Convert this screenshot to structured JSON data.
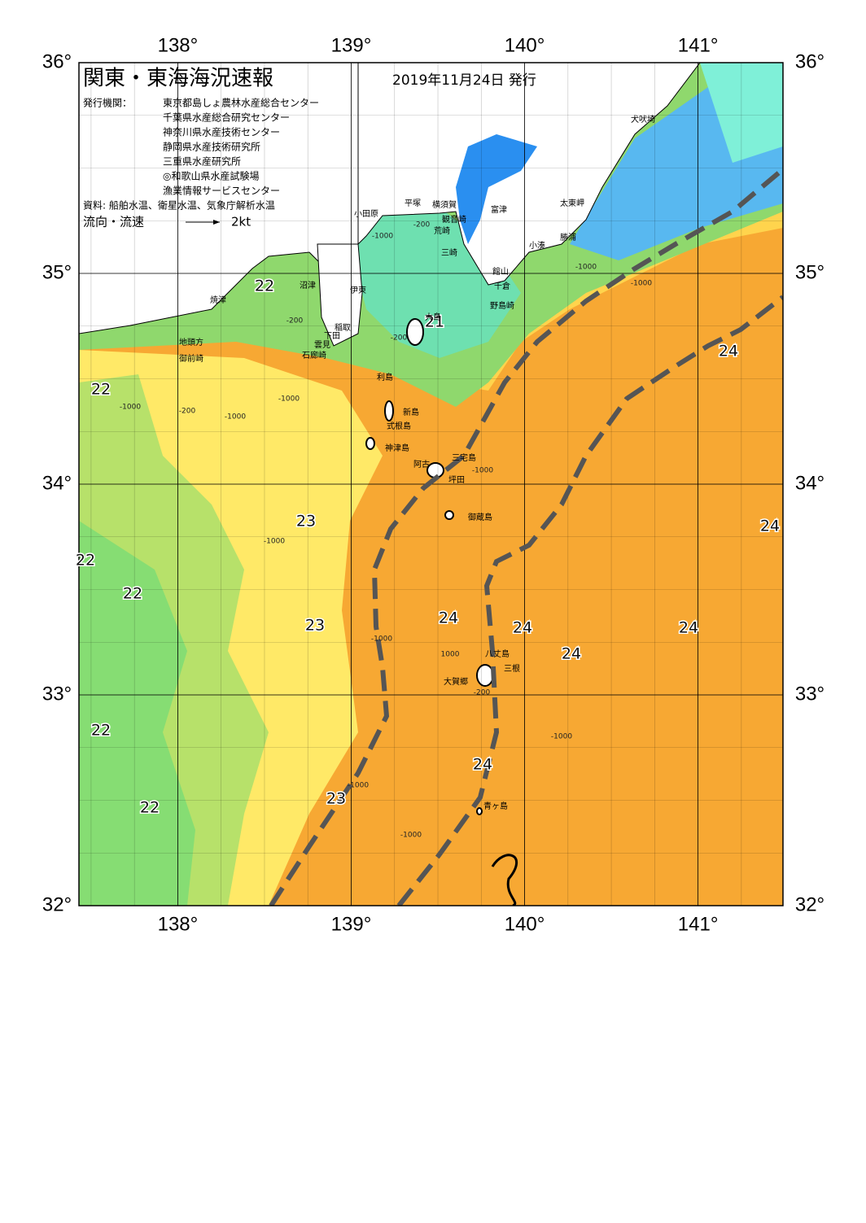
{
  "header": {
    "title": "関東・東海海況速報",
    "date": "2019年11月24日 発行"
  },
  "issuers": {
    "label": "発行機関：",
    "items": [
      "東京都島しょ農林水産総合センター",
      "千葉県水産総合研究センター",
      "神奈川県水産技術センター",
      "静岡県水産技術研究所",
      "三重県水産研究所",
      "◎和歌山県水産試験場",
      "漁業情報サービスセンター"
    ]
  },
  "source": "資料: 船舶水温、衛星水温、気象庁解析水温",
  "legend": {
    "label": "流向・流速",
    "scale": "2kt"
  },
  "axes": {
    "lon_ticks": [
      {
        "value": 138,
        "label": "138°"
      },
      {
        "value": 139,
        "label": "139°"
      },
      {
        "value": 140,
        "label": "140°"
      },
      {
        "value": 141,
        "label": "141°"
      }
    ],
    "lat_ticks": [
      {
        "value": 36,
        "label": "36°"
      },
      {
        "value": 35,
        "label": "35°"
      },
      {
        "value": 34,
        "label": "34°"
      },
      {
        "value": 33,
        "label": "33°"
      },
      {
        "value": 32,
        "label": "32°"
      }
    ]
  },
  "temperature_labels": [
    "22",
    "21",
    "22",
    "24",
    "23",
    "24",
    "22",
    "22",
    "23",
    "24",
    "24",
    "24",
    "24",
    "22",
    "24",
    "23",
    "22"
  ],
  "place_names": [
    "犬吠埼",
    "太東岬",
    "勝浦",
    "小湊",
    "富津",
    "横須賀",
    "観音崎",
    "荒崎",
    "三崎",
    "平塚",
    "小田原",
    "館山",
    "千倉",
    "野島崎",
    "大島",
    "沼津",
    "伊東",
    "焼津",
    "稲取",
    "下田",
    "雲見",
    "石廊崎",
    "地頭方",
    "御前崎",
    "利島",
    "新島",
    "式根島",
    "神津島",
    "三宅島",
    "阿古",
    "坪田",
    "御蔵島",
    "八丈島",
    "三根",
    "大賀郷",
    "青ヶ島"
  ],
  "contour_labels": [
    "-200",
    "-1000",
    "-1000",
    "-1000",
    "-200",
    "-200",
    "-1000",
    "-200",
    "-1000",
    "-1000",
    "-1000",
    "-1000",
    "-1000",
    "1000",
    "-200",
    "-1000",
    "-1000",
    "-1000"
  ]
}
